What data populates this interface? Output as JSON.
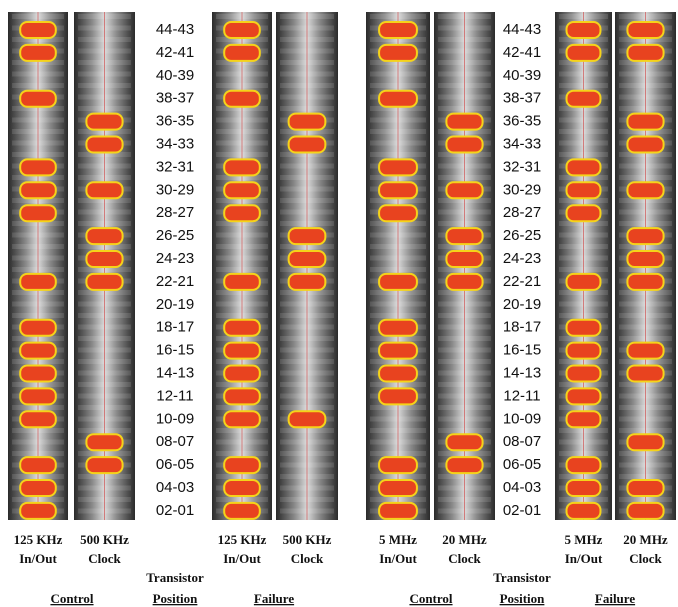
{
  "left_panel": {
    "strips": [
      {
        "line1": "125 KHz",
        "line2": "In/Out"
      },
      {
        "line1": "500 KHz",
        "line2": "Clock"
      },
      {
        "line1": "125 KHz",
        "line2": "In/Out"
      },
      {
        "line1": "500 KHz",
        "line2": "Clock"
      }
    ],
    "positions": [
      "44-43",
      "42-41",
      "40-39",
      "38-37",
      "36-35",
      "34-33",
      "32-31",
      "30-29",
      "28-27",
      "26-25",
      "24-23",
      "22-21",
      "20-19",
      "18-17",
      "16-15",
      "14-13",
      "12-11",
      "10-09",
      "08-07",
      "06-05",
      "04-03",
      "02-01"
    ],
    "axis_label": [
      "Transistor",
      "Position"
    ],
    "groups": [
      "Control",
      "Failure"
    ]
  },
  "right_panel": {
    "strips": [
      {
        "line1": "5 MHz",
        "line2": "In/Out"
      },
      {
        "line1": "20 MHz",
        "line2": "Clock"
      },
      {
        "line1": "5 MHz",
        "line2": "In/Out"
      },
      {
        "line1": "20 MHz",
        "line2": "Clock"
      }
    ],
    "positions": [
      "44-43",
      "42-41",
      "40-39",
      "38-37",
      "36-35",
      "34-33",
      "32-31",
      "30-29",
      "28-27",
      "26-25",
      "24-23",
      "22-21",
      "20-19",
      "18-17",
      "16-15",
      "14-13",
      "12-11",
      "10-09",
      "08-07",
      "06-05",
      "04-03",
      "02-01"
    ],
    "axis_label": [
      "Transistor",
      "Position"
    ],
    "groups": [
      "Control",
      "Failure"
    ]
  }
}
